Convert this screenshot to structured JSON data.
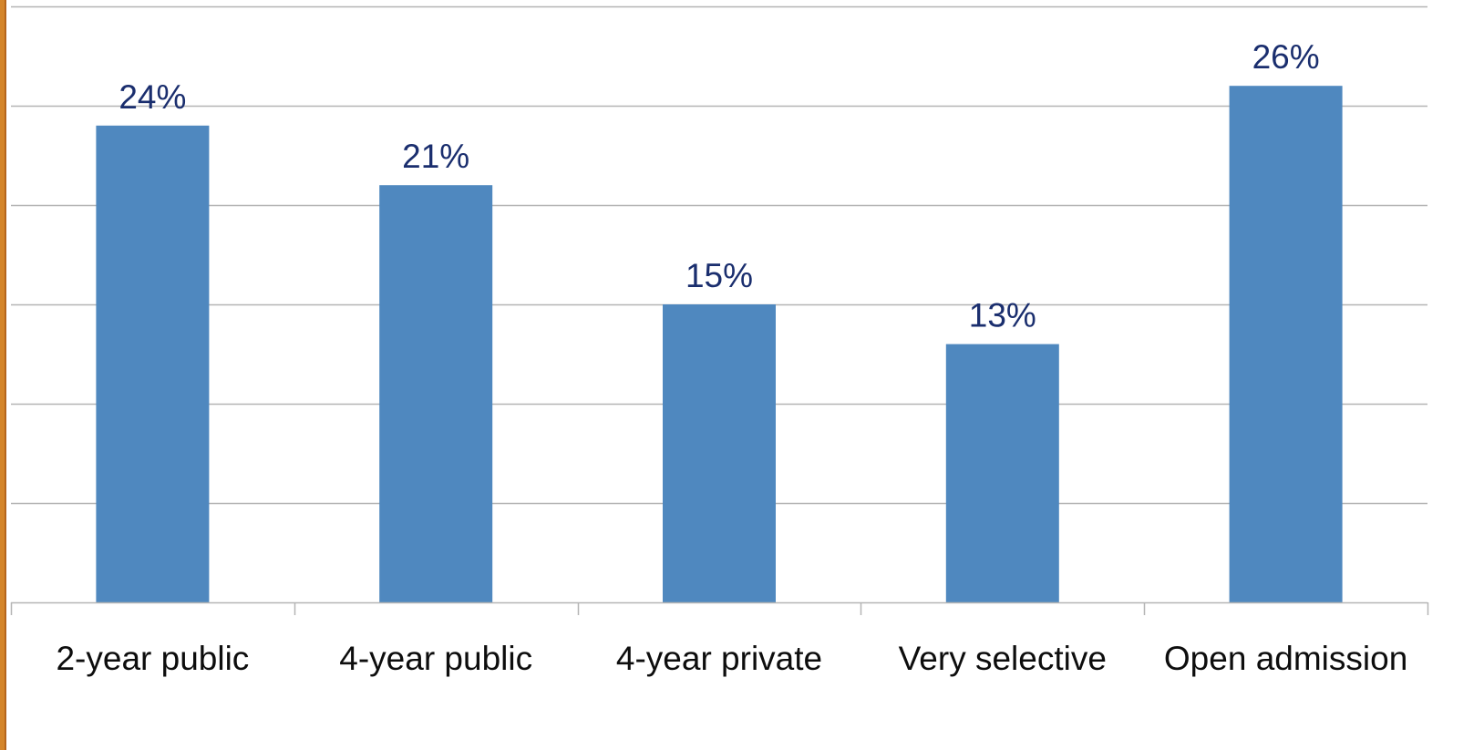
{
  "chart_data": {
    "type": "bar",
    "categories": [
      "2-year public",
      "4-year public",
      "4-year private",
      "Very selective",
      "Open admission"
    ],
    "series": [
      {
        "values": [
          24,
          21,
          15,
          13,
          26
        ]
      }
    ],
    "data_labels": [
      "24%",
      "21%",
      "15%",
      "13%",
      "26%"
    ],
    "ylim": [
      0,
      30
    ],
    "gridlines": true,
    "legend": "none",
    "title": "",
    "xlabel": "",
    "ylabel": ""
  },
  "colors": {
    "bar": "#4f88bf",
    "data_label": "#1a2e6e",
    "tick_label": "#0d0d0d",
    "gridline": "#b5b5b5",
    "accent_stripe": "#d4852a"
  }
}
